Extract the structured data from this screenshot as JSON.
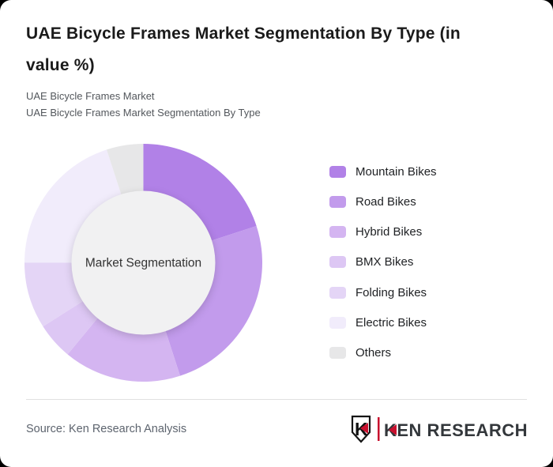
{
  "window": {
    "background_color": "#000000",
    "card_color": "#ffffff"
  },
  "header": {
    "title_line1": "UAE Bicycle Frames Market Segmentation By Type (in",
    "title_line2": "value %)",
    "subtitle_line1": "UAE Bicycle Frames Market",
    "subtitle_line2": "UAE Bicycle Frames Market Segmentation By Type"
  },
  "chart_data": {
    "type": "pie",
    "variant": "donut",
    "title": "UAE Bicycle Frames Market Segmentation By Type (in value %)",
    "center_label": "Market Segmentation",
    "legend_position": "right",
    "direction": "clockwise",
    "start_angle_deg": 0,
    "inner_circle_color": "#f1f1f2",
    "series": [
      {
        "label": "Mountain Bikes",
        "value_percent": 20,
        "color": "#b181e7"
      },
      {
        "label": "Road Bikes",
        "value_percent": 25,
        "color": "#c29bec"
      },
      {
        "label": "Hybrid Bikes",
        "value_percent": 16,
        "color": "#d4b5f1"
      },
      {
        "label": "BMX Bikes",
        "value_percent": 5,
        "color": "#ddc7f4"
      },
      {
        "label": "Folding Bikes",
        "value_percent": 9,
        "color": "#e4d5f6"
      },
      {
        "label": "Electric Bikes",
        "value_percent": 20,
        "color": "#f1ecfb"
      },
      {
        "label": "Others",
        "value_percent": 5,
        "color": "#e7e7e8"
      }
    ]
  },
  "footer": {
    "source_text": "Source: Ken Research Analysis",
    "logo": {
      "mark_letter": "K",
      "wordmark": "KEN RESEARCH",
      "accent_color": "#c8102e",
      "text_color": "#33373b"
    }
  }
}
